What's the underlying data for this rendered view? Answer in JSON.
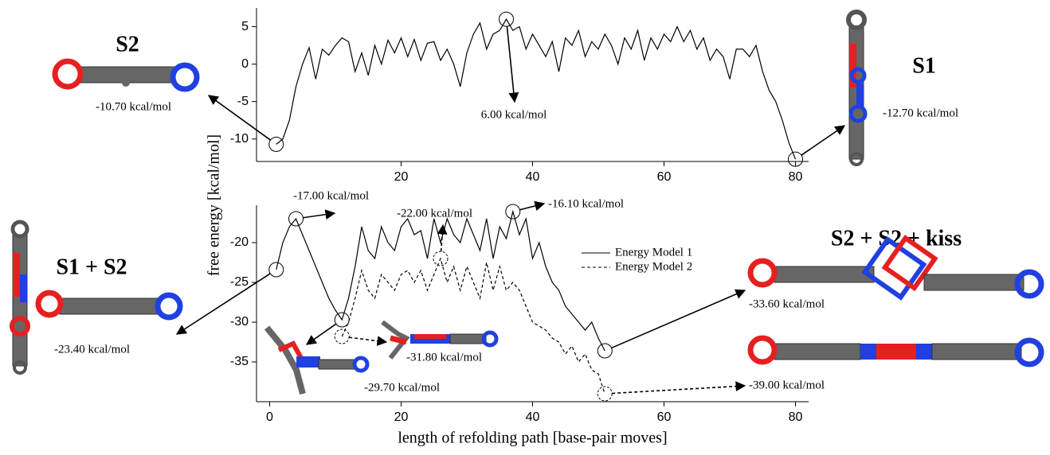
{
  "structure_titles": [
    "S2",
    "S1",
    "S1 + S2",
    "S2 + S2 + kiss"
  ],
  "chart_data": [
    {
      "type": "line",
      "x": [
        1,
        2,
        3,
        4,
        5,
        6,
        7,
        8,
        9,
        10,
        11,
        12,
        13,
        14,
        15,
        16,
        17,
        18,
        19,
        20,
        21,
        22,
        23,
        24,
        25,
        26,
        27,
        28,
        29,
        30,
        31,
        32,
        33,
        34,
        35,
        36,
        37,
        38,
        39,
        40,
        41,
        42,
        43,
        44,
        45,
        46,
        47,
        48,
        49,
        50,
        51,
        52,
        53,
        54,
        55,
        56,
        57,
        58,
        59,
        60,
        61,
        62,
        63,
        64,
        65,
        66,
        67,
        68,
        69,
        70,
        71,
        72,
        73,
        74,
        75,
        76,
        77,
        78,
        79,
        80
      ],
      "series": [
        {
          "color": "#000000",
          "dashed": false,
          "values": [
            -10.7,
            -10,
            -7.5,
            -3,
            0,
            2.2,
            -2,
            2,
            1.2,
            2.5,
            3.5,
            3,
            -1,
            1.5,
            -1.5,
            2.5,
            0,
            3.2,
            1.5,
            3.5,
            1,
            3.3,
            0.5,
            2.8,
            3,
            0.5,
            2,
            0,
            -3,
            1.5,
            4,
            5.5,
            2,
            4,
            4.5,
            6,
            4.5,
            5,
            2,
            4,
            2.5,
            1,
            3,
            -1,
            3.5,
            2.5,
            4.5,
            1,
            3,
            2,
            4,
            2.5,
            0,
            3.5,
            2,
            4.5,
            0.5,
            3.5,
            2,
            4,
            3,
            5,
            3,
            4.5,
            2,
            3.5,
            0.5,
            2,
            1,
            -2,
            2,
            2,
            1,
            2.5,
            -1,
            -3.5,
            -5,
            -7.5,
            -10.5,
            -12.7
          ],
          "value_labels": [
            "-10.70 kcal/mol",
            null,
            null,
            null,
            null,
            null,
            null,
            null,
            null,
            null,
            null,
            null,
            null,
            null,
            null,
            null,
            null,
            null,
            null,
            null,
            null,
            null,
            null,
            null,
            null,
            null,
            null,
            null,
            null,
            null,
            null,
            null,
            null,
            null,
            null,
            "6.00 kcal/mol",
            null,
            null,
            null,
            null,
            null,
            null,
            null,
            null,
            null,
            null,
            null,
            null,
            null,
            null,
            null,
            null,
            null,
            null,
            null,
            null,
            null,
            null,
            null,
            null,
            null,
            null,
            null,
            null,
            null,
            null,
            null,
            null,
            null,
            null,
            null,
            null,
            null,
            null,
            null,
            null,
            null,
            null,
            null,
            "-12.70 kcal/mol"
          ]
        }
      ],
      "xlim": [
        -2,
        82
      ],
      "xticks": [
        20,
        40,
        60,
        80
      ],
      "ylim": [
        -13,
        7.5
      ],
      "yticks": [
        -10,
        -5,
        0,
        5
      ]
    },
    {
      "type": "line",
      "xlabel": "length of refolding path [base-pair moves]",
      "ylabel": "free energy [kcal/mol]",
      "legend": "upper right",
      "x": [
        1,
        2,
        3,
        4,
        5,
        6,
        7,
        8,
        9,
        10,
        11,
        12,
        13,
        14,
        15,
        16,
        17,
        18,
        19,
        20,
        21,
        22,
        23,
        24,
        25,
        26,
        27,
        28,
        29,
        30,
        31,
        32,
        33,
        34,
        35,
        36,
        37,
        38,
        39,
        40,
        41,
        42,
        43,
        44,
        45,
        46,
        47,
        48,
        49,
        50,
        51
      ],
      "series": [
        {
          "name": "Energy Model 1",
          "color": "#000000",
          "dashed": false,
          "values": [
            -23.4,
            -20,
            -18,
            -17,
            -19,
            -21,
            -23,
            -25,
            -27,
            -28.5,
            -29.7,
            -27,
            -23,
            -18,
            -21,
            -22,
            -18,
            -20,
            -21,
            -18,
            -17,
            -19,
            -18.5,
            -22,
            -17,
            -20,
            -17,
            -19,
            -20,
            -17,
            -19,
            -21,
            -17,
            -22,
            -18,
            -19.5,
            -16.1,
            -19,
            -17,
            -22,
            -20,
            -23,
            -25,
            -26,
            -28,
            -29,
            -30,
            -31,
            -30,
            -32,
            -33.6
          ],
          "value_labels": [
            "-23.40 kcal/mol",
            null,
            null,
            "-17.00 kcal/mol",
            null,
            null,
            null,
            null,
            null,
            null,
            "-29.70 kcal/mol",
            null,
            null,
            null,
            null,
            null,
            null,
            null,
            null,
            null,
            null,
            null,
            null,
            null,
            null,
            null,
            null,
            null,
            null,
            null,
            null,
            null,
            null,
            null,
            null,
            null,
            "-16.10 kcal/mol",
            null,
            null,
            null,
            null,
            null,
            null,
            null,
            null,
            null,
            null,
            null,
            null,
            null,
            "-33.60 kcal/mol"
          ]
        },
        {
          "name": "Energy Model 2",
          "color": "#000000",
          "dashed": true,
          "values": [
            null,
            null,
            null,
            null,
            null,
            null,
            null,
            null,
            null,
            null,
            -31.8,
            -30,
            -27,
            -23.5,
            -26,
            -27,
            -24,
            -25,
            -26,
            -24,
            -23.5,
            -25,
            -23.5,
            -26,
            -24,
            -22,
            -25,
            -23,
            -26,
            -23,
            -25,
            -27,
            -22.5,
            -26,
            -23,
            -26,
            -25,
            -26,
            -28,
            -30,
            -30.5,
            -31,
            -32,
            -32.5,
            -34,
            -33,
            -35,
            -34,
            -36,
            -36.5,
            -39
          ],
          "value_labels": [
            null,
            null,
            null,
            null,
            null,
            null,
            null,
            null,
            null,
            null,
            "-31.80 kcal/mol",
            null,
            null,
            null,
            null,
            null,
            null,
            null,
            null,
            null,
            null,
            null,
            null,
            null,
            null,
            "-22.00 kcal/mol",
            null,
            null,
            null,
            null,
            null,
            null,
            null,
            null,
            null,
            null,
            null,
            null,
            null,
            null,
            null,
            null,
            null,
            null,
            null,
            null,
            null,
            null,
            null,
            null,
            "-39.00 kcal/mol"
          ]
        }
      ],
      "xlim": [
        -2,
        82
      ],
      "xticks": [
        0,
        20,
        40,
        60,
        80
      ],
      "ylim": [
        -40,
        -15.3
      ],
      "yticks": [
        -35,
        -30,
        -25,
        -20
      ]
    }
  ]
}
